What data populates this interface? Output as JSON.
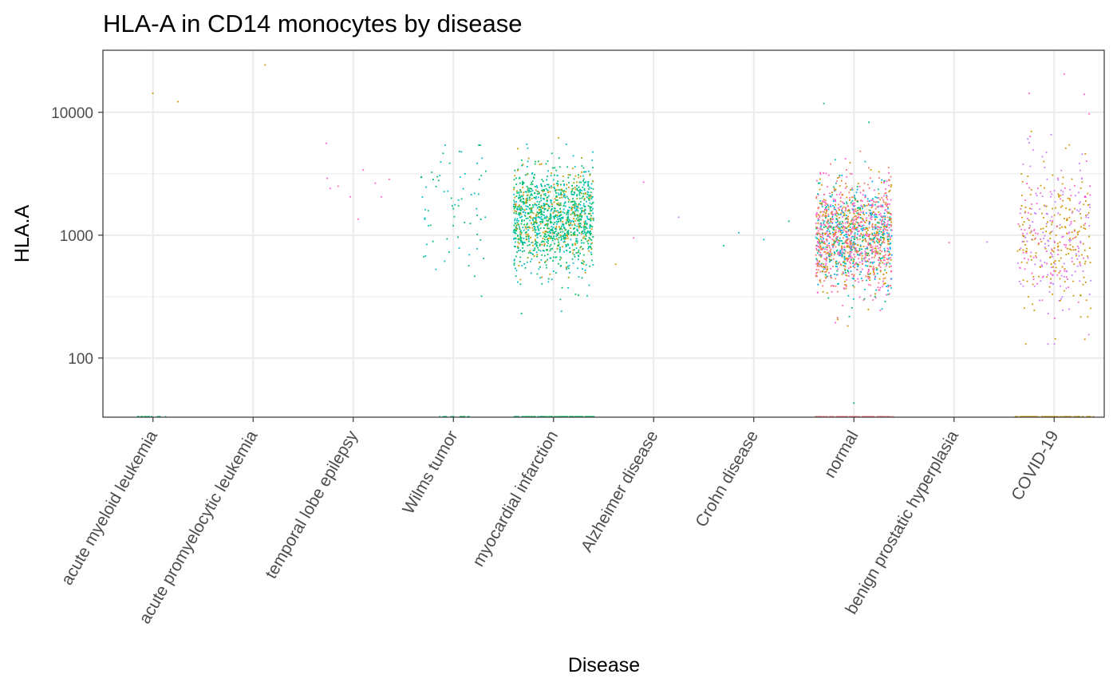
{
  "chart_data": {
    "type": "scatter",
    "title": "HLA-A in CD14 monocytes by disease",
    "xlabel": "Disease",
    "ylabel": "HLA.A",
    "y_scale": "log10",
    "ylim": [
      33,
      32000
    ],
    "y_ticks": [
      100,
      1000,
      10000
    ],
    "y_tick_labels": [
      "100",
      "1000",
      "10000"
    ],
    "categories": [
      "acute myeloid leukemia",
      "acute promyelocytic leukemia",
      "temporal lobe epilepsy",
      "Wilms tumor",
      "myocardial infarction",
      "Alzheimer disease",
      "Crohn disease",
      "normal",
      "benign prostatic hyperplasia",
      "COVID-19"
    ],
    "grid": true,
    "legend": "none",
    "point_colors": [
      "#F8766D",
      "#CD9600",
      "#7CAE00",
      "#00BE67",
      "#00BFC4",
      "#00A9FF",
      "#C77CFF",
      "#FF61CC"
    ],
    "jitter_groups": [
      {
        "category": "acute myeloid leukemia",
        "points": [
          [
            0.0,
            14300,
            "#CD9600"
          ],
          [
            0.25,
            12200,
            "#CD9600"
          ]
        ]
      },
      {
        "category": "acute promyelocytic leukemia",
        "points": [
          [
            0.12,
            24300,
            "#CD9600"
          ]
        ]
      },
      {
        "category": "temporal lobe epilepsy",
        "points": [
          [
            -0.27,
            5600,
            "#FF61CC"
          ],
          [
            -0.26,
            2900,
            "#FF61CC"
          ],
          [
            -0.23,
            2400,
            "#FF61CC"
          ],
          [
            -0.15,
            2500,
            "#FF61CC"
          ],
          [
            -0.03,
            2050,
            "#FF61CC"
          ],
          [
            0.05,
            1350,
            "#FF61CC"
          ],
          [
            0.1,
            3400,
            "#FF61CC"
          ],
          [
            0.22,
            2650,
            "#FF61CC"
          ],
          [
            0.28,
            2050,
            "#FF61CC"
          ],
          [
            0.36,
            2850,
            "#FF61CC"
          ]
        ]
      },
      {
        "category": "myocardial infarction",
        "points": [
          [
            0.05,
            6200,
            "#CD9600"
          ],
          [
            -0.32,
            230,
            "#00BE67"
          ],
          [
            0.08,
            240,
            "#00BFC4"
          ],
          [
            0.22,
            330,
            "#00BE67"
          ]
        ]
      },
      {
        "category": "Alzheimer disease",
        "points": [
          [
            -0.1,
            2700,
            "#FF61CC"
          ],
          [
            0.25,
            1400,
            "#C77CFF"
          ],
          [
            -0.2,
            950,
            "#FF61CC"
          ],
          [
            -0.38,
            580,
            "#CD9600"
          ]
        ]
      },
      {
        "category": "Crohn disease",
        "points": [
          [
            -0.15,
            1050,
            "#00BFC4"
          ],
          [
            0.1,
            920,
            "#00BFC4"
          ],
          [
            -0.3,
            820,
            "#00BE67"
          ],
          [
            0.35,
            1300,
            "#00BE67"
          ]
        ]
      },
      {
        "category": "normal",
        "points": [
          [
            -0.3,
            11800,
            "#00BE67"
          ],
          [
            0.15,
            8300,
            "#00BE67"
          ],
          [
            0.0,
            43,
            "#00BE67"
          ]
        ]
      },
      {
        "category": "benign prostatic hyperplasia",
        "points": [
          [
            -0.05,
            870,
            "#FF61CC"
          ],
          [
            0.33,
            880,
            "#C77CFF"
          ]
        ]
      },
      {
        "category": "COVID-19",
        "points": [
          [
            -0.25,
            14300,
            "#FF61CC"
          ],
          [
            0.1,
            20500,
            "#FF61CC"
          ],
          [
            0.3,
            14000,
            "#FF61CC"
          ],
          [
            0.35,
            9700,
            "#FF61CC"
          ]
        ]
      }
    ]
  }
}
